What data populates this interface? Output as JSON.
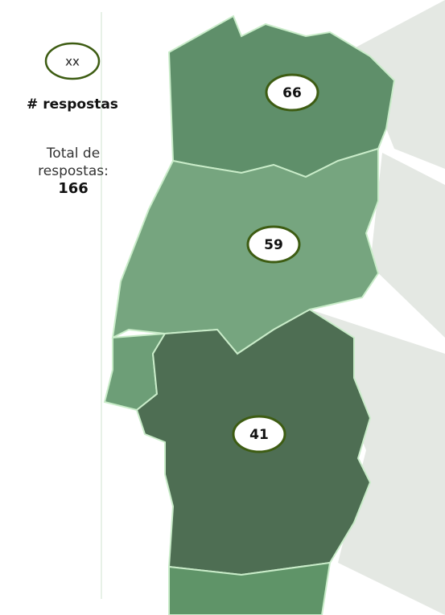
{
  "legend": {
    "sample": "xx",
    "label": "# respostas"
  },
  "total": {
    "label": "Total de respostas:",
    "value": 166
  },
  "regions": [
    {
      "value": 66
    },
    {
      "value": 59
    },
    {
      "value": 41
    }
  ]
}
